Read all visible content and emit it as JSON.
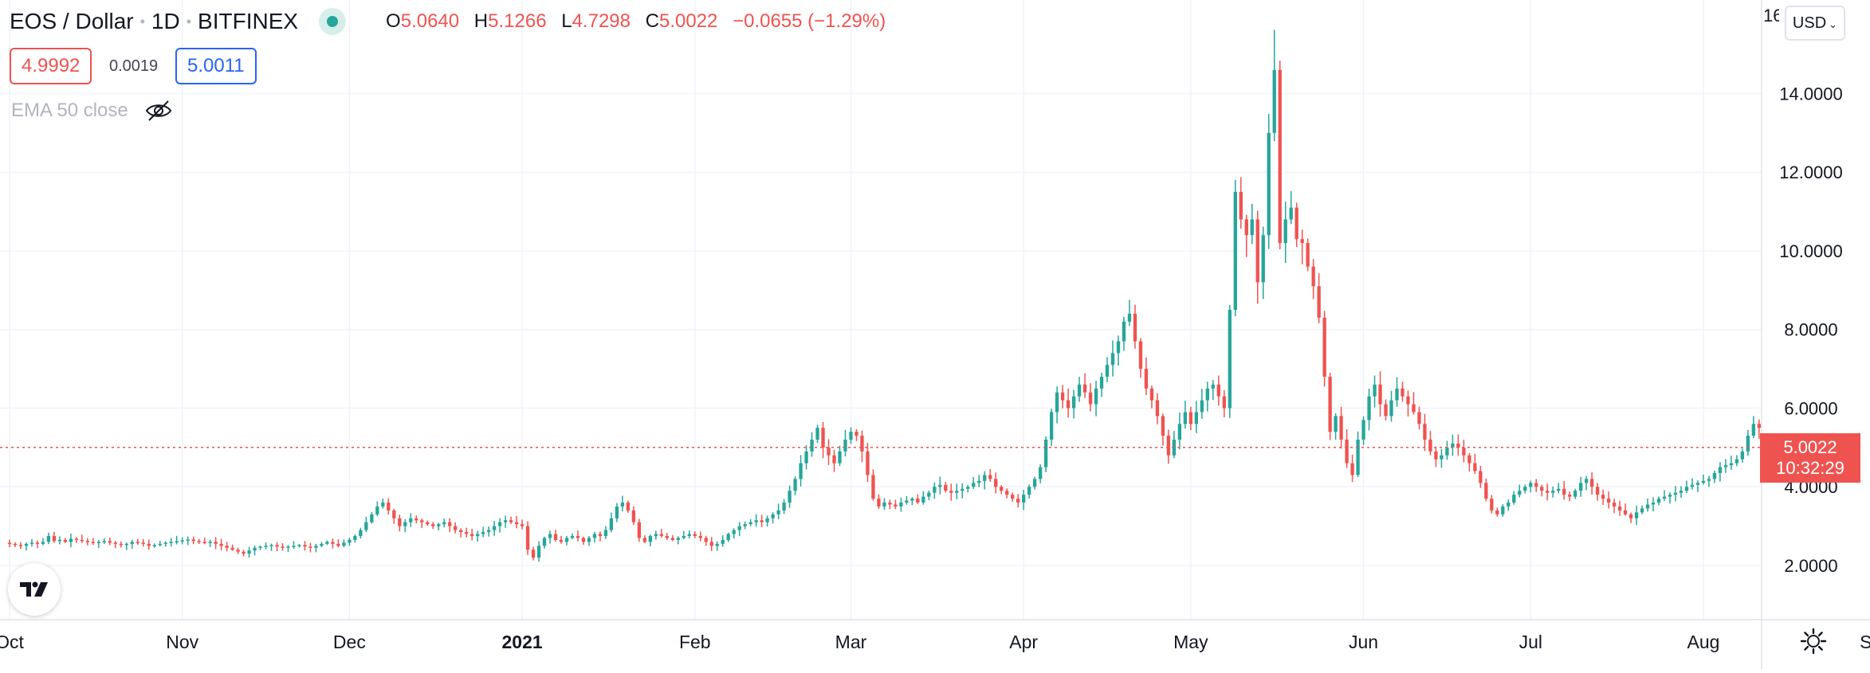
{
  "legend": {
    "symbol": "EOS / Dollar",
    "interval": "1D",
    "exchange": "BITFINEX",
    "ohlc": {
      "o_label": "O",
      "o": "5.0640",
      "h_label": "H",
      "h": "5.1266",
      "l_label": "L",
      "l": "4.7298",
      "c_label": "C",
      "c": "5.0022",
      "change": "−0.0655 (−1.29%)"
    }
  },
  "quote": {
    "bid": "4.9992",
    "spread": "0.0019",
    "ask": "5.0011"
  },
  "indicator": {
    "label": "EMA 50 close",
    "icon": "eye-off-icon"
  },
  "currency": {
    "label": "USD",
    "icon": "chevron-down-icon"
  },
  "last_price": {
    "price": "5.0022",
    "countdown": "10:32:29"
  },
  "colors": {
    "up": "#26a69a",
    "down": "#ef5350",
    "grid": "#f0f3fa",
    "axis_text": "#131722",
    "price_line": "#ef5350"
  },
  "chart_data": {
    "type": "candlestick",
    "title": "",
    "xlabel": "",
    "ylabel": "",
    "ylim": [
      0.8,
      15.6
    ],
    "y_ticks": [
      2,
      4,
      6,
      8,
      10,
      12,
      14
    ],
    "y_tick_labels": [
      "2.0000",
      "4.0000",
      "6.0000",
      "8.0000",
      "10.0000",
      "12.0000",
      "14.0000"
    ],
    "x_start": "2020-10-01",
    "x_ticks": [
      {
        "date": "2020-10-01",
        "label": "Oct",
        "bold": false
      },
      {
        "date": "2020-11-01",
        "label": "Nov",
        "bold": false
      },
      {
        "date": "2020-12-01",
        "label": "Dec",
        "bold": false
      },
      {
        "date": "2021-01-01",
        "label": "2021",
        "bold": true
      },
      {
        "date": "2021-02-01",
        "label": "Feb",
        "bold": false
      },
      {
        "date": "2021-03-01",
        "label": "Mar",
        "bold": false
      },
      {
        "date": "2021-04-01",
        "label": "Apr",
        "bold": false
      },
      {
        "date": "2021-05-01",
        "label": "May",
        "bold": false
      },
      {
        "date": "2021-06-01",
        "label": "Jun",
        "bold": false
      },
      {
        "date": "2021-07-01",
        "label": "Jul",
        "bold": false
      },
      {
        "date": "2021-08-01",
        "label": "Aug",
        "bold": false
      },
      {
        "date": "2021-09-01",
        "label": "Sep",
        "bold": false
      }
    ],
    "last_close": 5.0022,
    "daily_closes": [
      2.55,
      2.52,
      2.5,
      2.55,
      2.58,
      2.55,
      2.6,
      2.75,
      2.62,
      2.65,
      2.6,
      2.68,
      2.65,
      2.62,
      2.6,
      2.58,
      2.6,
      2.62,
      2.58,
      2.55,
      2.52,
      2.55,
      2.6,
      2.58,
      2.55,
      2.5,
      2.52,
      2.55,
      2.58,
      2.6,
      2.62,
      2.64,
      2.66,
      2.62,
      2.6,
      2.58,
      2.6,
      2.55,
      2.5,
      2.45,
      2.4,
      2.35,
      2.3,
      2.38,
      2.45,
      2.48,
      2.5,
      2.52,
      2.48,
      2.45,
      2.48,
      2.5,
      2.52,
      2.48,
      2.45,
      2.5,
      2.55,
      2.6,
      2.55,
      2.5,
      2.58,
      2.65,
      2.75,
      2.9,
      3.1,
      3.3,
      3.5,
      3.6,
      3.4,
      3.2,
      3.0,
      3.1,
      3.2,
      3.15,
      3.1,
      3.05,
      3.0,
      3.05,
      3.1,
      3.0,
      2.9,
      2.85,
      2.8,
      2.75,
      2.8,
      2.85,
      2.9,
      3.0,
      3.1,
      3.15,
      3.1,
      3.05,
      3.0,
      2.4,
      2.2,
      2.5,
      2.7,
      2.8,
      2.65,
      2.6,
      2.7,
      2.75,
      2.7,
      2.6,
      2.7,
      2.8,
      2.75,
      2.9,
      3.2,
      3.5,
      3.6,
      3.4,
      3.1,
      2.7,
      2.6,
      2.75,
      2.8,
      2.75,
      2.7,
      2.65,
      2.7,
      2.75,
      2.8,
      2.75,
      2.7,
      2.6,
      2.5,
      2.55,
      2.65,
      2.8,
      2.9,
      3.0,
      3.05,
      3.1,
      3.15,
      3.1,
      3.2,
      3.3,
      3.4,
      3.6,
      3.9,
      4.2,
      4.6,
      4.9,
      5.2,
      5.5,
      5.0,
      4.8,
      4.6,
      4.9,
      5.2,
      5.4,
      5.3,
      4.9,
      4.3,
      3.7,
      3.5,
      3.6,
      3.55,
      3.5,
      3.6,
      3.65,
      3.7,
      3.6,
      3.75,
      3.85,
      4.0,
      4.05,
      3.9,
      3.85,
      3.9,
      3.95,
      4.0,
      4.1,
      4.15,
      4.3,
      4.2,
      4.0,
      3.9,
      3.8,
      3.7,
      3.6,
      3.8,
      4.0,
      4.2,
      4.5,
      5.2,
      5.9,
      6.4,
      6.2,
      6.0,
      6.3,
      6.6,
      6.4,
      6.1,
      6.5,
      6.8,
      7.1,
      7.4,
      7.7,
      8.2,
      8.4,
      7.7,
      7.0,
      6.5,
      6.2,
      5.8,
      5.3,
      4.8,
      5.2,
      5.6,
      5.9,
      5.6,
      5.9,
      6.2,
      6.5,
      6.6,
      6.3,
      6.0,
      8.5,
      11.5,
      10.8,
      10.4,
      10.8,
      9.2,
      10.4,
      13.0,
      14.6,
      10.2,
      10.8,
      11.1,
      10.3,
      10.2,
      9.6,
      9.1,
      8.3,
      6.8,
      5.4,
      5.8,
      5.2,
      4.6,
      4.3,
      5.2,
      5.7,
      6.3,
      6.6,
      6.1,
      5.8,
      6.2,
      6.5,
      6.3,
      6.1,
      5.9,
      5.6,
      5.2,
      4.9,
      4.7,
      4.8,
      5.0,
      5.1,
      5.0,
      4.8,
      4.6,
      4.4,
      4.1,
      3.7,
      3.4,
      3.3,
      3.5,
      3.6,
      3.8,
      3.9,
      4.0,
      4.1,
      4.0,
      3.9,
      3.85,
      3.9,
      3.95,
      3.8,
      3.75,
      3.9,
      4.1,
      4.2,
      4.0,
      3.8,
      3.7,
      3.6,
      3.5,
      3.4,
      3.3,
      3.2,
      3.35,
      3.45,
      3.55,
      3.6,
      3.7,
      3.75,
      3.8,
      3.85,
      3.9,
      4.0,
      4.05,
      4.1,
      4.15,
      4.2,
      4.35,
      4.5,
      4.55,
      4.6,
      4.7,
      4.9,
      5.3,
      5.6,
      5.5,
      5.3,
      5.0
    ]
  }
}
